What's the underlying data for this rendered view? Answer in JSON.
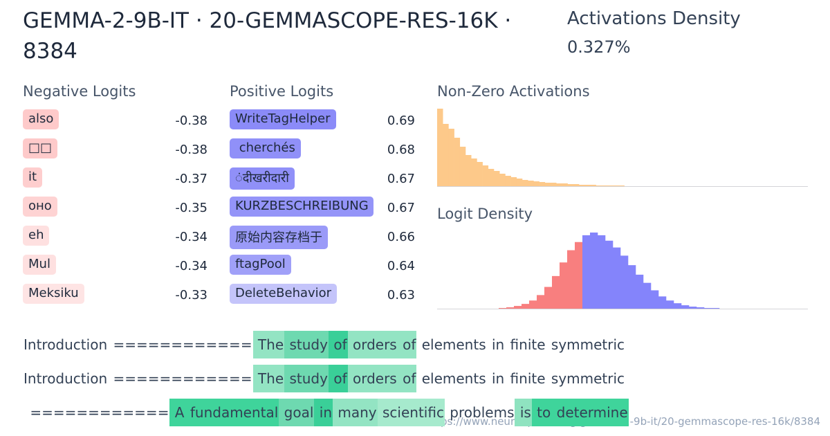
{
  "header": {
    "title": "GEMMA-2-9B-IT · 20-GEMMASCOPE-RES-16K · 8384",
    "density_label": "Activations Density",
    "density_value": "0.327%"
  },
  "negative_logits": {
    "title": "Negative Logits",
    "items": [
      {
        "token": "also",
        "value": -0.38,
        "color": "#fecaca"
      },
      {
        "token": "□□",
        "value": -0.38,
        "color": "#fecaca"
      },
      {
        "token": "it",
        "value": -0.37,
        "color": "#fecece"
      },
      {
        "token": "оно",
        "value": -0.35,
        "color": "#fed3d3"
      },
      {
        "token": "eh",
        "value": -0.34,
        "color": "#fee0e0"
      },
      {
        "token": "Mul",
        "value": -0.34,
        "color": "#fee0e0"
      },
      {
        "token": "Meksiku",
        "value": -0.33,
        "color": "#fee4e4"
      }
    ]
  },
  "positive_logits": {
    "title": "Positive Logits",
    "items": [
      {
        "token": "WriteTagHelper",
        "value": 0.69,
        "color": "#8b8bf8"
      },
      {
        "token": " cherchés",
        "value": 0.68,
        "color": "#9090f8"
      },
      {
        "token": "ंदीखरीदारी",
        "value": 0.67,
        "color": "#9090f8"
      },
      {
        "token": "KURZBESCHREIBUNG",
        "value": 0.67,
        "color": "#9494f8"
      },
      {
        "token": "原始内容存档于",
        "value": 0.66,
        "color": "#9a9af8"
      },
      {
        "token": "ftagPool",
        "value": 0.64,
        "color": "#a0a0f8"
      },
      {
        "token": "DeleteBehavior",
        "value": 0.63,
        "color": "#c4c4fa"
      }
    ]
  },
  "nonzero_activations": {
    "title": "Non-Zero Activations",
    "color": "#fdc98a",
    "values": [
      112,
      90,
      83,
      70,
      57,
      45,
      40,
      35,
      30,
      25,
      22,
      18,
      15,
      13,
      11,
      9,
      8,
      7,
      6,
      5,
      5,
      4,
      4,
      3,
      3,
      2,
      2,
      2,
      1,
      1,
      1,
      1,
      1
    ]
  },
  "logit_density": {
    "title": "Logit Density",
    "series": [
      {
        "color": "#f87f7f",
        "values": [
          0,
          0,
          0,
          0,
          0,
          0,
          0,
          1,
          2,
          4,
          7,
          12,
          20,
          32,
          48,
          68,
          86,
          98
        ]
      },
      {
        "color": "#8484fb",
        "values": [
          108,
          112,
          108,
          100,
          90,
          78,
          64,
          50,
          38,
          27,
          18,
          12,
          8,
          5,
          3,
          2,
          1,
          1
        ]
      }
    ]
  },
  "examples": [
    [
      {
        "text": "Introduction",
        "color": null
      },
      {
        "text": " ============",
        "color": null
      },
      {
        "text": " The",
        "color": "#93e4c3"
      },
      {
        "text": " study",
        "color": "#6ed9b0"
      },
      {
        "text": " of",
        "color": "#3acf98"
      },
      {
        "text": " orders",
        "color": "#93e4c3"
      },
      {
        "text": " of",
        "color": "#93e4c3"
      },
      {
        "text": " elements",
        "color": null
      },
      {
        "text": " in",
        "color": null
      },
      {
        "text": " finite",
        "color": null
      },
      {
        "text": " symmetric",
        "color": null
      }
    ],
    [
      {
        "text": "Introduction",
        "color": null
      },
      {
        "text": " ============",
        "color": null
      },
      {
        "text": " The",
        "color": "#93e4c3"
      },
      {
        "text": " study",
        "color": "#6ed9b0"
      },
      {
        "text": " of",
        "color": "#3acf98"
      },
      {
        "text": " orders",
        "color": "#93e4c3"
      },
      {
        "text": " of",
        "color": "#93e4c3"
      },
      {
        "text": " elements",
        "color": null
      },
      {
        "text": " in",
        "color": null
      },
      {
        "text": " finite",
        "color": null
      },
      {
        "text": " symmetric",
        "color": null
      }
    ],
    [
      {
        "text": " ============",
        "color": null
      },
      {
        "text": " A",
        "color": "#3fd49b"
      },
      {
        "text": " fundamental",
        "color": "#3fd49b"
      },
      {
        "text": " goal",
        "color": "#6ed9b0"
      },
      {
        "text": " in",
        "color": "#3acf98"
      },
      {
        "text": " many",
        "color": "#93e4c3"
      },
      {
        "text": " scientific",
        "color": "#a6eacd"
      },
      {
        "text": " problems",
        "color": null
      },
      {
        "text": " is",
        "color": "#8fe3c0"
      },
      {
        "text": " to",
        "color": "#3fd49b"
      },
      {
        "text": " determine",
        "color": "#3fd49b"
      }
    ]
  ],
  "url": "https://www.neuronpedia.org/gemma-2-9b-it/20-gemmascope-res-16k/8384"
}
